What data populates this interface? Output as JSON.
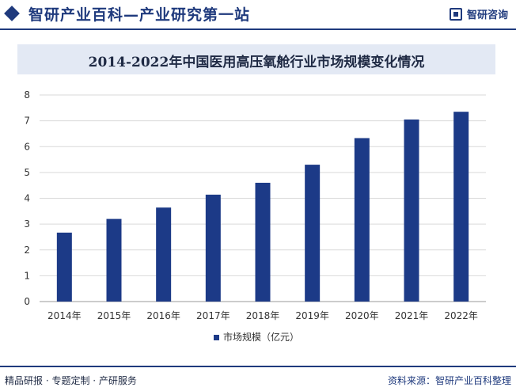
{
  "header": {
    "site_title": "智研产业百科—产业研究第一站",
    "brand_name": "智研咨询"
  },
  "footer": {
    "services": "精品研报 · 专题定制 · 产研服务",
    "source": "资料来源：智研产业百科整理"
  },
  "colors": {
    "accent": "#1f3a7d",
    "bar": "#1c3a87",
    "title_band": "#e3e9f4"
  },
  "chart_data": {
    "type": "bar",
    "title": "2014-2022年中国医用高压氧舱行业市场规模变化情况",
    "categories": [
      "2014年",
      "2015年",
      "2016年",
      "2017年",
      "2018年",
      "2019年",
      "2020年",
      "2021年",
      "2022年"
    ],
    "series": [
      {
        "name": "市场规模（亿元）",
        "values": [
          2.67,
          3.2,
          3.64,
          4.14,
          4.6,
          5.3,
          6.33,
          7.05,
          7.35
        ]
      }
    ],
    "ylim": [
      0,
      8
    ],
    "yticks": [
      0,
      1,
      2,
      3,
      4,
      5,
      6,
      7,
      8
    ],
    "grid": true,
    "legend": "bottom-center"
  }
}
